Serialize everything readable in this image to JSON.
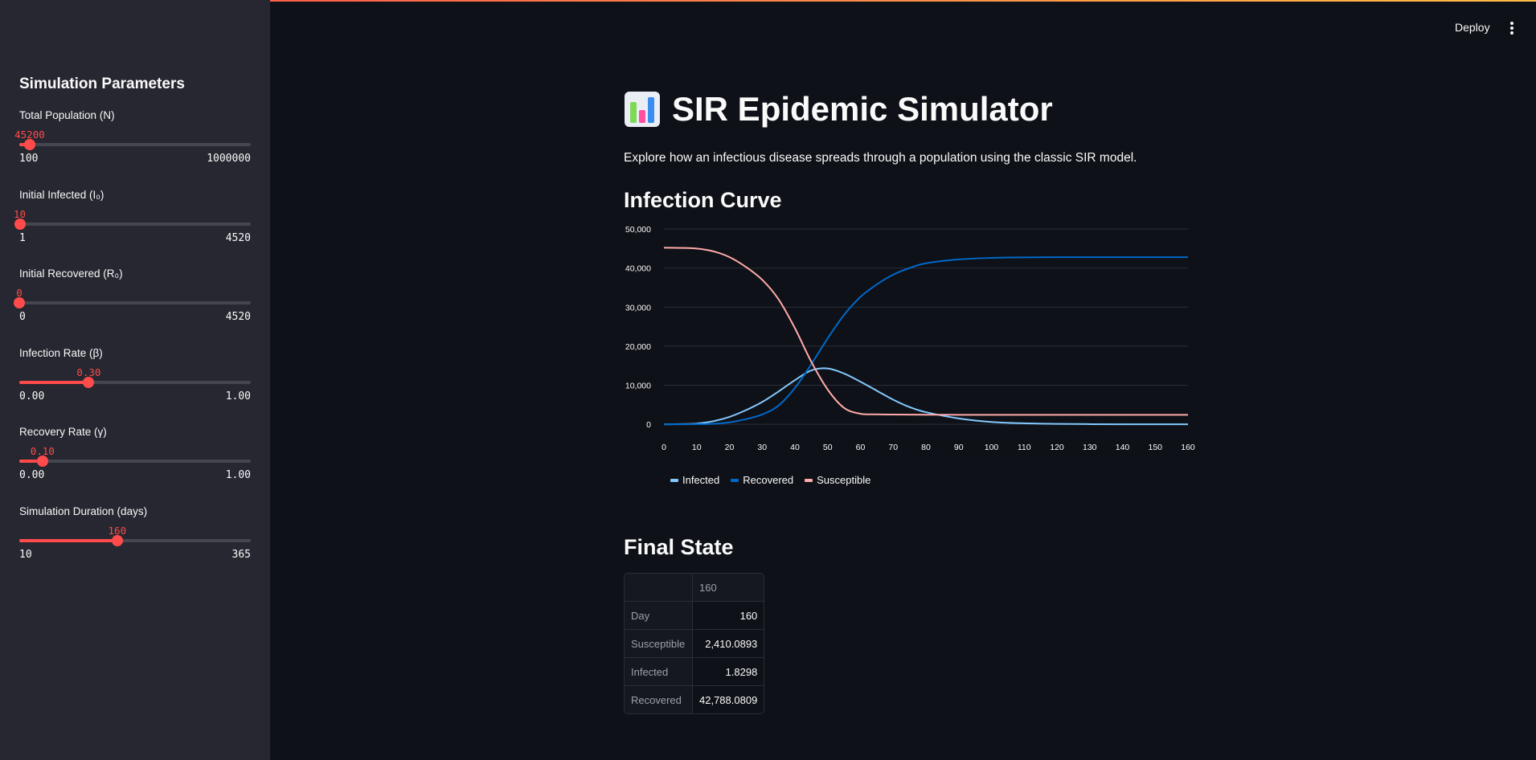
{
  "header": {
    "deploy_label": "Deploy"
  },
  "sidebar": {
    "title": "Simulation Parameters",
    "sliders": [
      {
        "label": "Total Population (N)",
        "value": "45200",
        "min": "100",
        "max": "1000000",
        "fraction": 0.045
      },
      {
        "label": "Initial Infected (I₀)",
        "value": "10",
        "min": "1",
        "max": "4520",
        "fraction": 0.002
      },
      {
        "label": "Initial Recovered (R₀)",
        "value": "0",
        "min": "0",
        "max": "4520",
        "fraction": 0.0
      },
      {
        "label": "Infection Rate (β)",
        "value": "0.30",
        "min": "0.00",
        "max": "1.00",
        "fraction": 0.3
      },
      {
        "label": "Recovery Rate (γ)",
        "value": "0.10",
        "min": "0.00",
        "max": "1.00",
        "fraction": 0.1
      },
      {
        "label": "Simulation Duration (days)",
        "value": "160",
        "min": "10",
        "max": "365",
        "fraction": 0.423
      }
    ]
  },
  "main": {
    "title_icon": "📊",
    "title": "SIR Epidemic Simulator",
    "subtitle": "Explore how an infectious disease spreads through a population using the classic SIR model.",
    "chart_heading": "Infection Curve",
    "table_heading": "Final State",
    "table": {
      "column_header": "160",
      "rows": [
        {
          "label": "Day",
          "value": "160"
        },
        {
          "label": "Susceptible",
          "value": "2,410.0893"
        },
        {
          "label": "Infected",
          "value": "1.8298"
        },
        {
          "label": "Recovered",
          "value": "42,788.0809"
        }
      ]
    }
  },
  "chart_data": {
    "type": "line",
    "x": [
      0,
      5,
      10,
      15,
      20,
      25,
      30,
      35,
      40,
      45,
      50,
      55,
      60,
      65,
      70,
      75,
      80,
      90,
      100,
      110,
      120,
      130,
      140,
      150,
      160
    ],
    "series": [
      {
        "name": "Infected",
        "color": "#83c9ff",
        "values": [
          10,
          44,
          190,
          780,
          1900,
          3600,
          5700,
          8400,
          11300,
          13800,
          14300,
          13000,
          10900,
          8600,
          6300,
          4400,
          3100,
          1500,
          600,
          250,
          100,
          40,
          15,
          5,
          2
        ]
      },
      {
        "name": "Recovered",
        "color": "#0068c9",
        "values": [
          0,
          5,
          30,
          130,
          500,
          1300,
          2500,
          4800,
          9300,
          15400,
          22000,
          28000,
          32600,
          35800,
          38300,
          40000,
          41200,
          42200,
          42600,
          42730,
          42770,
          42780,
          42785,
          42787,
          42788
        ]
      },
      {
        "name": "Susceptible",
        "color": "#ffabab",
        "values": [
          45190,
          45150,
          44980,
          44290,
          42800,
          40300,
          37000,
          32000,
          24600,
          16000,
          8900,
          4200,
          2700,
          2550,
          2500,
          2470,
          2450,
          2430,
          2420,
          2415,
          2412,
          2411,
          2410,
          2410,
          2410
        ]
      }
    ],
    "xticks": [
      0,
      10,
      20,
      30,
      40,
      50,
      60,
      70,
      80,
      90,
      100,
      110,
      120,
      130,
      140,
      150,
      160
    ],
    "yticks": [
      0,
      10000,
      20000,
      30000,
      40000,
      50000
    ],
    "ytick_labels": [
      "0",
      "10,000",
      "20,000",
      "30,000",
      "40,000",
      "50,000"
    ],
    "xlim": [
      0,
      160
    ],
    "ylim": [
      -1000,
      50000
    ],
    "grid": true,
    "legend_position": "bottom-left"
  }
}
